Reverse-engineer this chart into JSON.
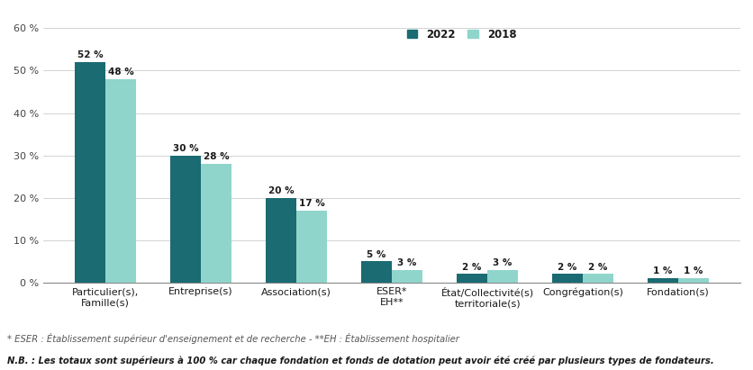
{
  "categories": [
    "Particulier(s),\nFamille(s)",
    "Entreprise(s)",
    "Association(s)",
    "ESER*\nEH**",
    "État/Collectivité(s)\nterritoriale(s)",
    "Congrégation(s)",
    "Fondation(s)"
  ],
  "values_2022": [
    52,
    30,
    20,
    5,
    2,
    2,
    1
  ],
  "values_2018": [
    48,
    28,
    17,
    3,
    3,
    2,
    1
  ],
  "color_2022": "#1a6b72",
  "color_2018": "#8fd5cc",
  "ylim": [
    0,
    60
  ],
  "yticks": [
    0,
    10,
    20,
    30,
    40,
    50,
    60
  ],
  "legend_label_2022": "2022",
  "legend_label_2018": "2018",
  "footnote1": "* ESER : Établissement supérieur d'enseignement et de recherche - **EH : Établissement hospitalier",
  "footnote2": "N.B. : Les totaux sont supérieurs à 100 % car chaque fondation et fonds de dotation peut avoir été créé par plusieurs types de fondateurs.",
  "bar_width": 0.32,
  "background_color": "#ffffff",
  "grid_color": "#cccccc",
  "axis_color": "#888888",
  "label_fontsize": 8.0,
  "tick_fontsize": 8.0,
  "legend_fontsize": 8.5,
  "bar_label_fontsize": 7.5,
  "footnote1_fontsize": 7.2,
  "footnote2_fontsize": 7.2
}
